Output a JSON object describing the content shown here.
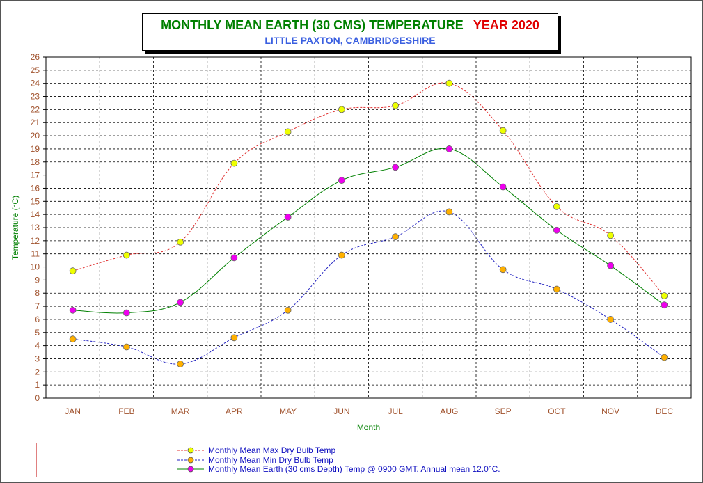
{
  "title": {
    "main": "MONTHLY MEAN  EARTH (30 CMS) TEMPERATURE",
    "year": "YEAR 2020",
    "subtitle": "LITTLE PAXTON, CAMBRIDGESHIRE"
  },
  "colors": {
    "title": "#008000",
    "year": "#e00000",
    "subtitle": "#3a5fe0",
    "tick_labels": "#a0522d",
    "axis_title": "#008000",
    "legend_text": "#1010c0",
    "legend_border": "#e08080"
  },
  "chart_data": {
    "type": "line",
    "categories": [
      "JAN",
      "FEB",
      "MAR",
      "APR",
      "MAY",
      "JUN",
      "JUL",
      "AUG",
      "SEP",
      "OCT",
      "NOV",
      "DEC"
    ],
    "xlabel": "Month",
    "ylabel": "Temperature (°C)",
    "ylim": [
      0,
      26
    ],
    "ytick_step": 1,
    "grid": true,
    "legend_position": "bottom",
    "series": [
      {
        "name": "Monthly Mean Max Dry Bulb Temp",
        "values": [
          9.7,
          10.9,
          11.9,
          17.9,
          20.3,
          22.0,
          22.3,
          24.0,
          20.4,
          14.6,
          12.4,
          7.8
        ],
        "line_color": "#e03030",
        "line_style": "dashed",
        "marker_color": "#eeff00"
      },
      {
        "name": "Monthly Mean Min Dry Bulb Temp",
        "values": [
          4.5,
          3.9,
          2.6,
          4.6,
          6.7,
          10.9,
          12.3,
          14.2,
          9.8,
          8.3,
          6.0,
          3.1
        ],
        "line_color": "#2020c0",
        "line_style": "dashed",
        "marker_color": "#ffb000"
      },
      {
        "name": "Monthly Mean Earth (30 cms Depth) Temp @ 0900 GMT. Annual mean 12.0°C.",
        "values": [
          6.7,
          6.5,
          7.3,
          10.7,
          13.8,
          16.6,
          17.6,
          19.0,
          16.1,
          12.8,
          10.1,
          7.1
        ],
        "line_color": "#008000",
        "line_style": "solid",
        "marker_color": "#ee00ee"
      }
    ]
  }
}
